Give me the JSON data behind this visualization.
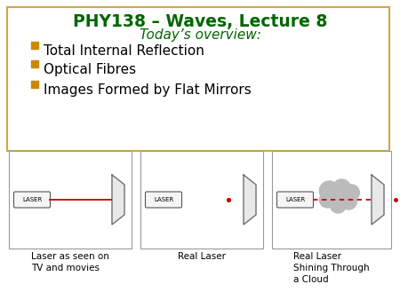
{
  "title": "PHY138 – Waves, Lecture 8",
  "subtitle": "Today’s overview:",
  "bullets": [
    "Total Internal Reflection",
    "Optical Fibres",
    "Images Formed by Flat Mirrors"
  ],
  "bullet_color": "#CC8800",
  "title_color": "#006600",
  "subtitle_color": "#006600",
  "bg_color": "#FFFFFF",
  "box_border_color": "#CCAA44",
  "captions": [
    "Laser as seen on\nTV and movies",
    "Real Laser",
    "Real Laser\nShining Through\na Cloud"
  ],
  "beam_color": "#CC0000",
  "cloud_color": "#BBBBBB",
  "panel_border": "#999999",
  "mirror_fill": "#E8E8E8",
  "mirror_edge": "#666666"
}
